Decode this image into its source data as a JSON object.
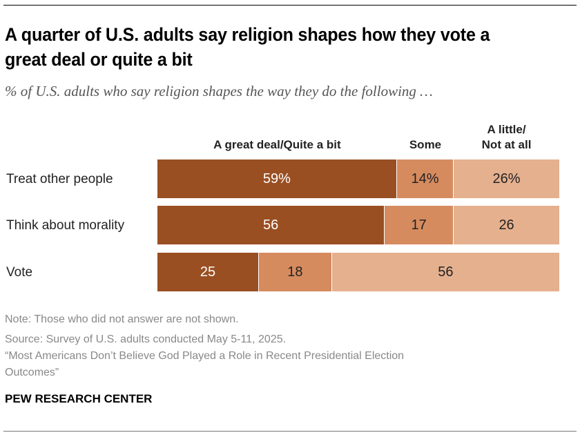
{
  "title": "A quarter of U.S. adults say religion shapes how they vote a great deal or quite a bit",
  "subtitle": "% of U.S. adults who say religion shapes the way they do the following …",
  "chart_data": {
    "type": "bar",
    "orientation": "horizontal-stacked-100",
    "title": "A quarter of U.S. adults say religion shapes how they vote a great deal or quite a bit",
    "subtitle": "% of U.S. adults who say religion shapes the way they do the following …",
    "categories": [
      "Treat other people",
      "Think about morality",
      "Vote"
    ],
    "series": [
      {
        "name": "A great deal/Quite a bit",
        "values": [
          59,
          56,
          25
        ],
        "labels": [
          "59%",
          "56",
          "25"
        ],
        "color": "#9a4f22",
        "label_color": "#ffffff"
      },
      {
        "name": "Some",
        "values": [
          14,
          17,
          18
        ],
        "labels": [
          "14%",
          "17",
          "18"
        ],
        "color": "#d68b5f",
        "label_color": "#222222"
      },
      {
        "name": "A little/Not at all",
        "values": [
          26,
          26,
          56
        ],
        "labels": [
          "26%",
          "26",
          "56"
        ],
        "color": "#e5b08e",
        "label_color": "#222222"
      }
    ],
    "legend_headers": [
      "A great deal/Quite a bit",
      "Some",
      "A little/\nNot at all"
    ],
    "xlim": [
      0,
      100
    ],
    "grid": false,
    "legend": "top (column headers)"
  },
  "footer": {
    "note": "Note: Those who did not answer are not shown.",
    "source": "Source: Survey of U.S. adults conducted May 5-11, 2025.",
    "report_line1": "“Most Americans Don’t Believe God Played a Role in Recent Presidential Election",
    "report_line2": "Outcomes”",
    "brand": "PEW RESEARCH CENTER"
  }
}
